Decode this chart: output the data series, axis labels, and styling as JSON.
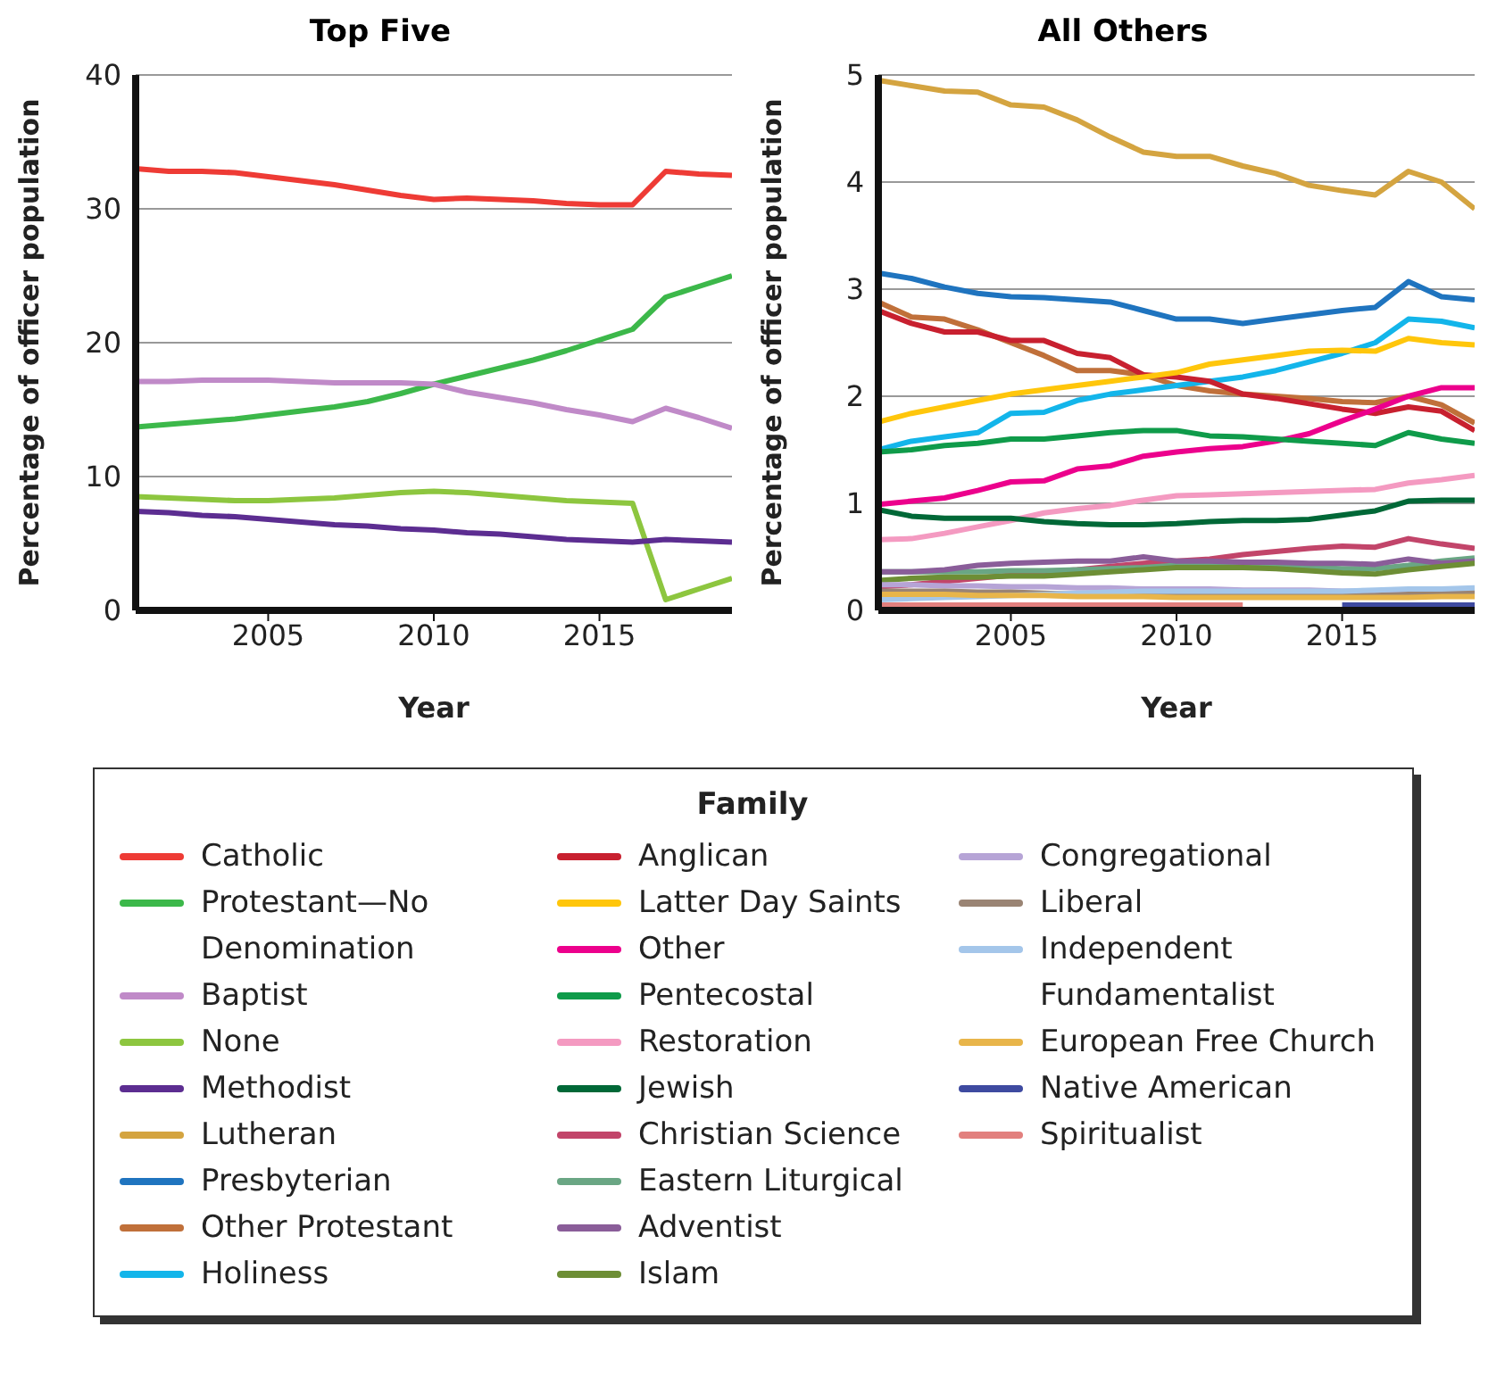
{
  "chart_data": [
    {
      "type": "line",
      "title": "Top Five",
      "xlabel": "Year",
      "ylabel": "Percentage of officer population",
      "legend": "bottom",
      "legend_title": "Family",
      "grid": "y",
      "marker": "none",
      "line_style": "solid",
      "x": [
        2001,
        2002,
        2003,
        2004,
        2005,
        2006,
        2007,
        2008,
        2009,
        2010,
        2011,
        2012,
        2013,
        2014,
        2015,
        2016,
        2017,
        2018,
        2019
      ],
      "xlim": [
        2001,
        2019
      ],
      "xticks": [
        2005,
        2010,
        2015
      ],
      "ylim": [
        0,
        40
      ],
      "yticks": [
        0,
        10,
        20,
        30,
        40
      ],
      "series": [
        {
          "name": "Catholic",
          "color": "#ee3b35",
          "values": [
            33.0,
            32.8,
            32.8,
            32.7,
            32.4,
            32.1,
            31.8,
            31.4,
            31.0,
            30.7,
            30.8,
            30.7,
            30.6,
            30.4,
            30.3,
            30.3,
            32.8,
            32.6,
            32.5
          ]
        },
        {
          "name": "Protestant—No Denomination",
          "color": "#3cb84a",
          "values": [
            13.7,
            13.9,
            14.1,
            14.3,
            14.6,
            14.9,
            15.2,
            15.6,
            16.2,
            16.9,
            17.5,
            18.1,
            18.7,
            19.4,
            20.2,
            21.0,
            23.4,
            24.2,
            25.0
          ]
        },
        {
          "name": "Baptist",
          "color": "#c08ac8",
          "values": [
            17.1,
            17.1,
            17.2,
            17.2,
            17.2,
            17.1,
            17.0,
            17.0,
            17.0,
            16.9,
            16.3,
            15.9,
            15.5,
            15.0,
            14.6,
            14.1,
            15.1,
            14.4,
            13.6
          ]
        },
        {
          "name": "None",
          "color": "#8dc63f",
          "values": [
            8.5,
            8.4,
            8.3,
            8.2,
            8.2,
            8.3,
            8.4,
            8.6,
            8.8,
            8.9,
            8.8,
            8.6,
            8.4,
            8.2,
            8.1,
            8.0,
            0.8,
            1.6,
            2.4
          ]
        },
        {
          "name": "Methodist",
          "color": "#5c2d91",
          "values": [
            7.4,
            7.3,
            7.1,
            7.0,
            6.8,
            6.6,
            6.4,
            6.3,
            6.1,
            6.0,
            5.8,
            5.7,
            5.5,
            5.3,
            5.2,
            5.1,
            5.3,
            5.2,
            5.1
          ]
        }
      ]
    },
    {
      "type": "line",
      "title": "All Others",
      "xlabel": "Year",
      "ylabel": "Percentage of officer population",
      "legend": "bottom",
      "grid": "y",
      "marker": "none",
      "line_style": "solid",
      "x": [
        2001,
        2002,
        2003,
        2004,
        2005,
        2006,
        2007,
        2008,
        2009,
        2010,
        2011,
        2012,
        2013,
        2014,
        2015,
        2016,
        2017,
        2018,
        2019
      ],
      "xlim": [
        2001,
        2019
      ],
      "xticks": [
        2005,
        2010,
        2015
      ],
      "ylim": [
        0,
        5
      ],
      "yticks": [
        0,
        1,
        2,
        3,
        4,
        5
      ],
      "series": [
        {
          "name": "Lutheran",
          "color": "#d4a440",
          "values": [
            4.95,
            4.9,
            4.85,
            4.84,
            4.72,
            4.7,
            4.58,
            4.42,
            4.28,
            4.24,
            4.24,
            4.15,
            4.08,
            3.97,
            3.92,
            3.88,
            4.1,
            4.0,
            3.75
          ]
        },
        {
          "name": "Presbyterian",
          "color": "#1f74bf",
          "values": [
            3.15,
            3.1,
            3.02,
            2.96,
            2.93,
            2.92,
            2.9,
            2.88,
            2.8,
            2.72,
            2.72,
            2.68,
            2.72,
            2.76,
            2.8,
            2.83,
            3.07,
            2.93,
            2.9
          ]
        },
        {
          "name": "Other Protestant",
          "color": "#c0703a",
          "values": [
            2.88,
            2.74,
            2.72,
            2.62,
            2.5,
            2.38,
            2.24,
            2.24,
            2.2,
            2.1,
            2.05,
            2.02,
            2.0,
            1.98,
            1.95,
            1.94,
            2.0,
            1.92,
            1.75
          ]
        },
        {
          "name": "Holiness",
          "color": "#13b5ea",
          "values": [
            1.5,
            1.58,
            1.62,
            1.66,
            1.84,
            1.85,
            1.96,
            2.02,
            2.06,
            2.1,
            2.14,
            2.18,
            2.24,
            2.32,
            2.4,
            2.5,
            2.72,
            2.7,
            2.64
          ]
        },
        {
          "name": "Anglican",
          "color": "#c8202f",
          "values": [
            2.8,
            2.68,
            2.6,
            2.6,
            2.52,
            2.52,
            2.4,
            2.36,
            2.2,
            2.18,
            2.14,
            2.02,
            1.98,
            1.93,
            1.88,
            1.84,
            1.9,
            1.86,
            1.68
          ]
        },
        {
          "name": "Latter Day Saints",
          "color": "#ffc60b",
          "values": [
            1.76,
            1.84,
            1.9,
            1.96,
            2.02,
            2.06,
            2.1,
            2.14,
            2.18,
            2.22,
            2.3,
            2.34,
            2.38,
            2.42,
            2.43,
            2.42,
            2.54,
            2.5,
            2.48
          ]
        },
        {
          "name": "Other",
          "color": "#ec008c",
          "values": [
            0.99,
            1.02,
            1.05,
            1.12,
            1.2,
            1.21,
            1.32,
            1.35,
            1.44,
            1.48,
            1.51,
            1.53,
            1.58,
            1.65,
            1.77,
            1.88,
            2.0,
            2.08,
            2.08
          ]
        },
        {
          "name": "Pentecostal",
          "color": "#0f9b4a",
          "values": [
            1.48,
            1.5,
            1.54,
            1.56,
            1.6,
            1.6,
            1.63,
            1.66,
            1.68,
            1.68,
            1.63,
            1.62,
            1.6,
            1.58,
            1.56,
            1.54,
            1.66,
            1.6,
            1.56
          ]
        },
        {
          "name": "Restoration",
          "color": "#f49ac1",
          "values": [
            0.66,
            0.67,
            0.72,
            0.78,
            0.84,
            0.91,
            0.95,
            0.98,
            1.03,
            1.07,
            1.08,
            1.09,
            1.1,
            1.11,
            1.12,
            1.13,
            1.19,
            1.22,
            1.26
          ]
        },
        {
          "name": "Jewish",
          "color": "#006837",
          "values": [
            0.94,
            0.88,
            0.86,
            0.86,
            0.86,
            0.83,
            0.81,
            0.8,
            0.8,
            0.81,
            0.83,
            0.84,
            0.84,
            0.85,
            0.89,
            0.93,
            1.02,
            1.03,
            1.03
          ]
        },
        {
          "name": "Christian Science",
          "color": "#c2456a",
          "values": [
            0.22,
            0.24,
            0.27,
            0.3,
            0.33,
            0.36,
            0.38,
            0.41,
            0.44,
            0.46,
            0.48,
            0.52,
            0.55,
            0.58,
            0.6,
            0.59,
            0.67,
            0.62,
            0.58
          ]
        },
        {
          "name": "Eastern Liturgical",
          "color": "#6aa684",
          "values": [
            0.36,
            0.36,
            0.36,
            0.36,
            0.37,
            0.37,
            0.38,
            0.39,
            0.4,
            0.42,
            0.43,
            0.42,
            0.41,
            0.4,
            0.39,
            0.39,
            0.42,
            0.46,
            0.49
          ]
        },
        {
          "name": "Adventist",
          "color": "#8a5d99",
          "values": [
            0.36,
            0.36,
            0.38,
            0.42,
            0.44,
            0.45,
            0.46,
            0.46,
            0.5,
            0.46,
            0.46,
            0.45,
            0.45,
            0.44,
            0.44,
            0.43,
            0.48,
            0.44,
            0.46
          ]
        },
        {
          "name": "Islam",
          "color": "#6d8e35",
          "values": [
            0.28,
            0.3,
            0.31,
            0.31,
            0.32,
            0.32,
            0.34,
            0.36,
            0.38,
            0.4,
            0.4,
            0.4,
            0.39,
            0.37,
            0.35,
            0.34,
            0.38,
            0.41,
            0.44
          ]
        },
        {
          "name": "Congregational",
          "color": "#b6a4d6",
          "values": [
            0.24,
            0.24,
            0.23,
            0.23,
            0.22,
            0.22,
            0.21,
            0.21,
            0.2,
            0.2,
            0.2,
            0.19,
            0.19,
            0.19,
            0.18,
            0.18,
            0.18,
            0.18,
            0.18
          ]
        },
        {
          "name": "Liberal",
          "color": "#9a8474",
          "values": [
            0.18,
            0.18,
            0.18,
            0.17,
            0.17,
            0.16,
            0.15,
            0.14,
            0.14,
            0.14,
            0.14,
            0.14,
            0.14,
            0.14,
            0.14,
            0.14,
            0.15,
            0.16,
            0.17
          ]
        },
        {
          "name": "Independent Fundamentalist",
          "color": "#a4c6ea",
          "values": [
            0.1,
            0.11,
            0.12,
            0.13,
            0.14,
            0.15,
            0.16,
            0.17,
            0.18,
            0.18,
            0.18,
            0.18,
            0.18,
            0.18,
            0.18,
            0.19,
            0.2,
            0.2,
            0.21
          ]
        },
        {
          "name": "European Free Church",
          "color": "#e8b54a",
          "values": [
            0.15,
            0.15,
            0.15,
            0.14,
            0.14,
            0.14,
            0.13,
            0.13,
            0.13,
            0.12,
            0.12,
            0.12,
            0.12,
            0.12,
            0.12,
            0.12,
            0.12,
            0.13,
            0.13
          ]
        },
        {
          "name": "Native American",
          "color": "#3e4aa0",
          "values": [
            null,
            null,
            null,
            null,
            null,
            null,
            null,
            null,
            null,
            null,
            null,
            null,
            null,
            null,
            0.05,
            0.05,
            0.05,
            0.05,
            0.05
          ]
        },
        {
          "name": "Spiritualist",
          "color": "#e2807e",
          "values": [
            0.05,
            0.05,
            0.05,
            0.05,
            0.05,
            0.05,
            0.05,
            0.05,
            0.05,
            0.05,
            0.05,
            0.05,
            null,
            null,
            null,
            null,
            null,
            null,
            null
          ]
        }
      ]
    }
  ]
}
